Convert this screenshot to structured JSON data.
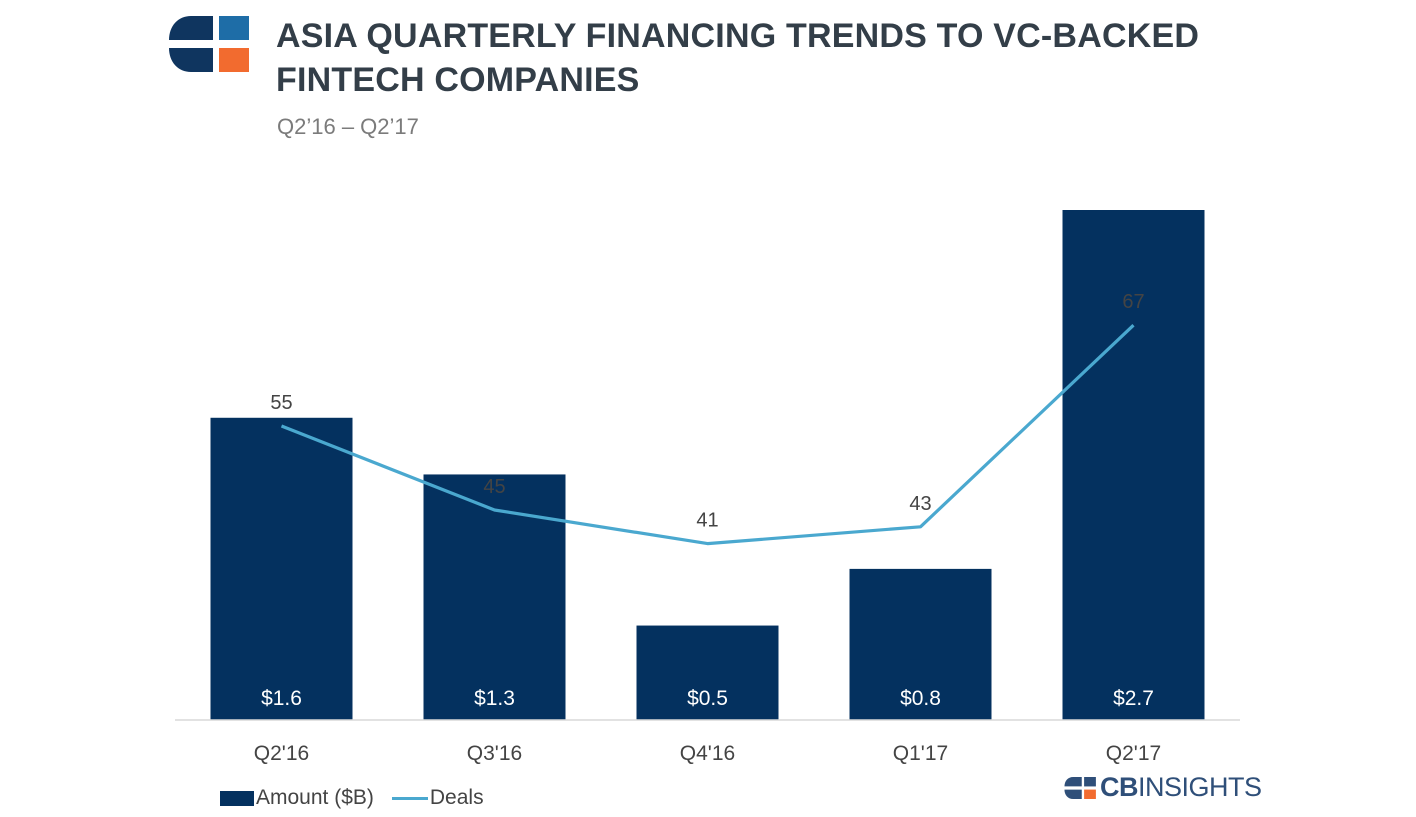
{
  "header": {
    "title_line1": "ASIA QUARTERLY FINANCING TRENDS TO VC-BACKED",
    "title_line2": "FINTECH COMPANIES",
    "subtitle": "Q2’16 – Q2’17",
    "logo_icon": "cb-insights-logo-icon"
  },
  "brand": {
    "strong": "CB",
    "rest": "INSIGHTS"
  },
  "colors": {
    "bar": "#04315f",
    "line": "#4aa8cf",
    "logo_blue": "#1e6da7",
    "logo_orange": "#f26b2f",
    "logo_navy": "#0f355f"
  },
  "chart_data": {
    "type": "bar",
    "categories": [
      "Q2'16",
      "Q3'16",
      "Q4'16",
      "Q1'17",
      "Q2'17"
    ],
    "series": [
      {
        "name": "Amount ($B)",
        "type": "bar",
        "values": [
          1.6,
          1.3,
          0.5,
          0.8,
          2.7
        ],
        "labels": [
          "$1.6",
          "$1.3",
          "$0.5",
          "$0.8",
          "$2.7"
        ]
      },
      {
        "name": "Deals",
        "type": "line",
        "values": [
          55,
          45,
          41,
          43,
          67
        ],
        "labels": [
          "55",
          "45",
          "41",
          "43",
          "67"
        ]
      }
    ],
    "grid": false,
    "legend": "bottom-left"
  }
}
